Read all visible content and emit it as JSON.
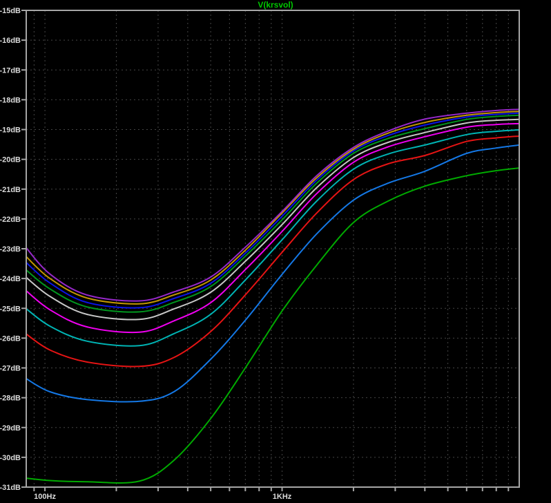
{
  "title": {
    "text": "V(krsvol)",
    "color": "#00c800"
  },
  "colors": {
    "background": "#000000",
    "grid": "#464646",
    "frame": "#a6a6a6",
    "tick_label": "#dcdcdc"
  },
  "chart_data": {
    "type": "line",
    "title": "V(krsvol)",
    "grid": true,
    "legend_position": "none (title acts as trace label)",
    "x_axis": {
      "scale": "log",
      "unit": "Hz",
      "min_hz": 83.4,
      "max_hz": 10000,
      "labeled_ticks": [
        {
          "hz": 100,
          "text": "100Hz"
        },
        {
          "hz": 1000,
          "text": "1KHz"
        }
      ]
    },
    "y_axis": {
      "unit": "dB",
      "max": -15,
      "min": -31,
      "tick_step": 1,
      "tick_labels": [
        "-15dB",
        "-16dB",
        "-17dB",
        "-18dB",
        "-19dB",
        "-20dB",
        "-21dB",
        "-22dB",
        "-23dB",
        "-24dB",
        "-25dB",
        "-26dB",
        "-27dB",
        "-28dB",
        "-29dB",
        "-30dB",
        "-31dB"
      ]
    },
    "frequencies_hz": [
      83,
      105,
      150,
      250,
      350,
      500,
      700,
      1000,
      1400,
      2000,
      2800,
      4000,
      6000,
      8000,
      10000
    ],
    "series": [
      {
        "name": "trace-purple",
        "color": "#9628c8",
        "values_db": [
          -22.95,
          -23.85,
          -24.55,
          -24.75,
          -24.45,
          -23.95,
          -22.95,
          -21.75,
          -20.55,
          -19.6,
          -19.05,
          -18.65,
          -18.45,
          -18.36,
          -18.32
        ]
      },
      {
        "name": "trace-gold",
        "color": "#c39600",
        "values_db": [
          -23.25,
          -24.0,
          -24.65,
          -24.85,
          -24.55,
          -24.05,
          -23.05,
          -21.8,
          -20.62,
          -19.66,
          -19.12,
          -18.76,
          -18.52,
          -18.43,
          -18.39
        ]
      },
      {
        "name": "trace-blue",
        "color": "#0a14e6",
        "values_db": [
          -23.45,
          -24.15,
          -24.8,
          -24.98,
          -24.67,
          -24.16,
          -23.15,
          -21.91,
          -20.7,
          -19.72,
          -19.2,
          -18.85,
          -18.58,
          -18.49,
          -18.45
        ]
      },
      {
        "name": "trace-dark-green",
        "color": "#00961e",
        "values_db": [
          -23.7,
          -24.35,
          -24.95,
          -25.12,
          -24.8,
          -24.27,
          -23.25,
          -22.03,
          -20.8,
          -19.8,
          -19.3,
          -18.97,
          -18.66,
          -18.56,
          -18.52
        ]
      },
      {
        "name": "trace-gray",
        "color": "#c8c8c8",
        "values_db": [
          -23.95,
          -24.6,
          -25.2,
          -25.37,
          -25.02,
          -24.46,
          -23.42,
          -22.19,
          -20.95,
          -19.94,
          -19.43,
          -19.1,
          -18.78,
          -18.69,
          -18.66
        ]
      },
      {
        "name": "trace-magenta",
        "color": "#f000f0",
        "values_db": [
          -24.4,
          -25.05,
          -25.62,
          -25.8,
          -25.42,
          -24.81,
          -23.7,
          -22.42,
          -21.15,
          -20.1,
          -19.58,
          -19.24,
          -18.92,
          -18.83,
          -18.8
        ]
      },
      {
        "name": "trace-cyan",
        "color": "#00b4b4",
        "values_db": [
          -25.0,
          -25.6,
          -26.1,
          -26.25,
          -25.85,
          -25.2,
          -24.05,
          -22.7,
          -21.4,
          -20.33,
          -19.82,
          -19.52,
          -19.17,
          -19.06,
          -19.01
        ]
      },
      {
        "name": "trace-red",
        "color": "#e61414",
        "values_db": [
          -25.85,
          -26.4,
          -26.8,
          -26.95,
          -26.65,
          -25.78,
          -24.55,
          -23.12,
          -21.8,
          -20.68,
          -20.15,
          -19.87,
          -19.4,
          -19.28,
          -19.22
        ]
      },
      {
        "name": "trace-bright-blue",
        "color": "#1478e6",
        "values_db": [
          -27.35,
          -27.8,
          -28.06,
          -28.12,
          -27.8,
          -26.71,
          -25.4,
          -23.86,
          -22.5,
          -21.37,
          -20.8,
          -20.4,
          -19.8,
          -19.62,
          -19.52
        ]
      },
      {
        "name": "trace-green",
        "color": "#00aa00",
        "values_db": [
          -30.7,
          -30.78,
          -30.82,
          -30.8,
          -30.1,
          -28.7,
          -27.0,
          -25.09,
          -23.55,
          -22.12,
          -21.4,
          -20.9,
          -20.55,
          -20.38,
          -20.29
        ]
      }
    ]
  }
}
